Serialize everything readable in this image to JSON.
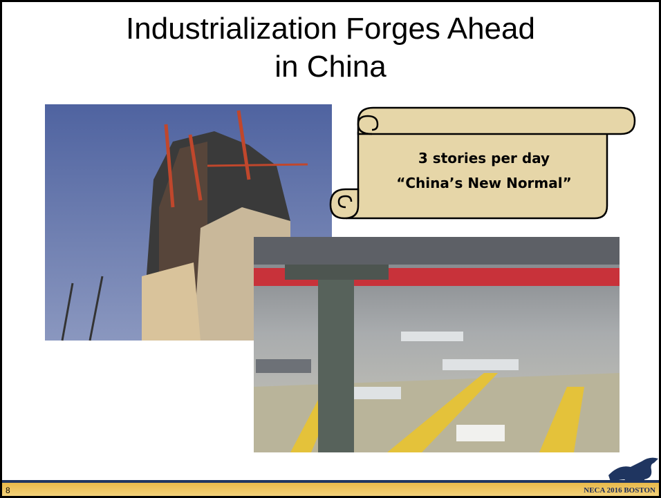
{
  "slide": {
    "title_lines": [
      "Industrialization Forges Ahead",
      "in China"
    ],
    "scroll_lines": [
      "3 stories per day",
      "“China’s New Normal”"
    ],
    "footer": {
      "page_number": "8",
      "brand": "NECA 2016 BOSTON"
    }
  }
}
